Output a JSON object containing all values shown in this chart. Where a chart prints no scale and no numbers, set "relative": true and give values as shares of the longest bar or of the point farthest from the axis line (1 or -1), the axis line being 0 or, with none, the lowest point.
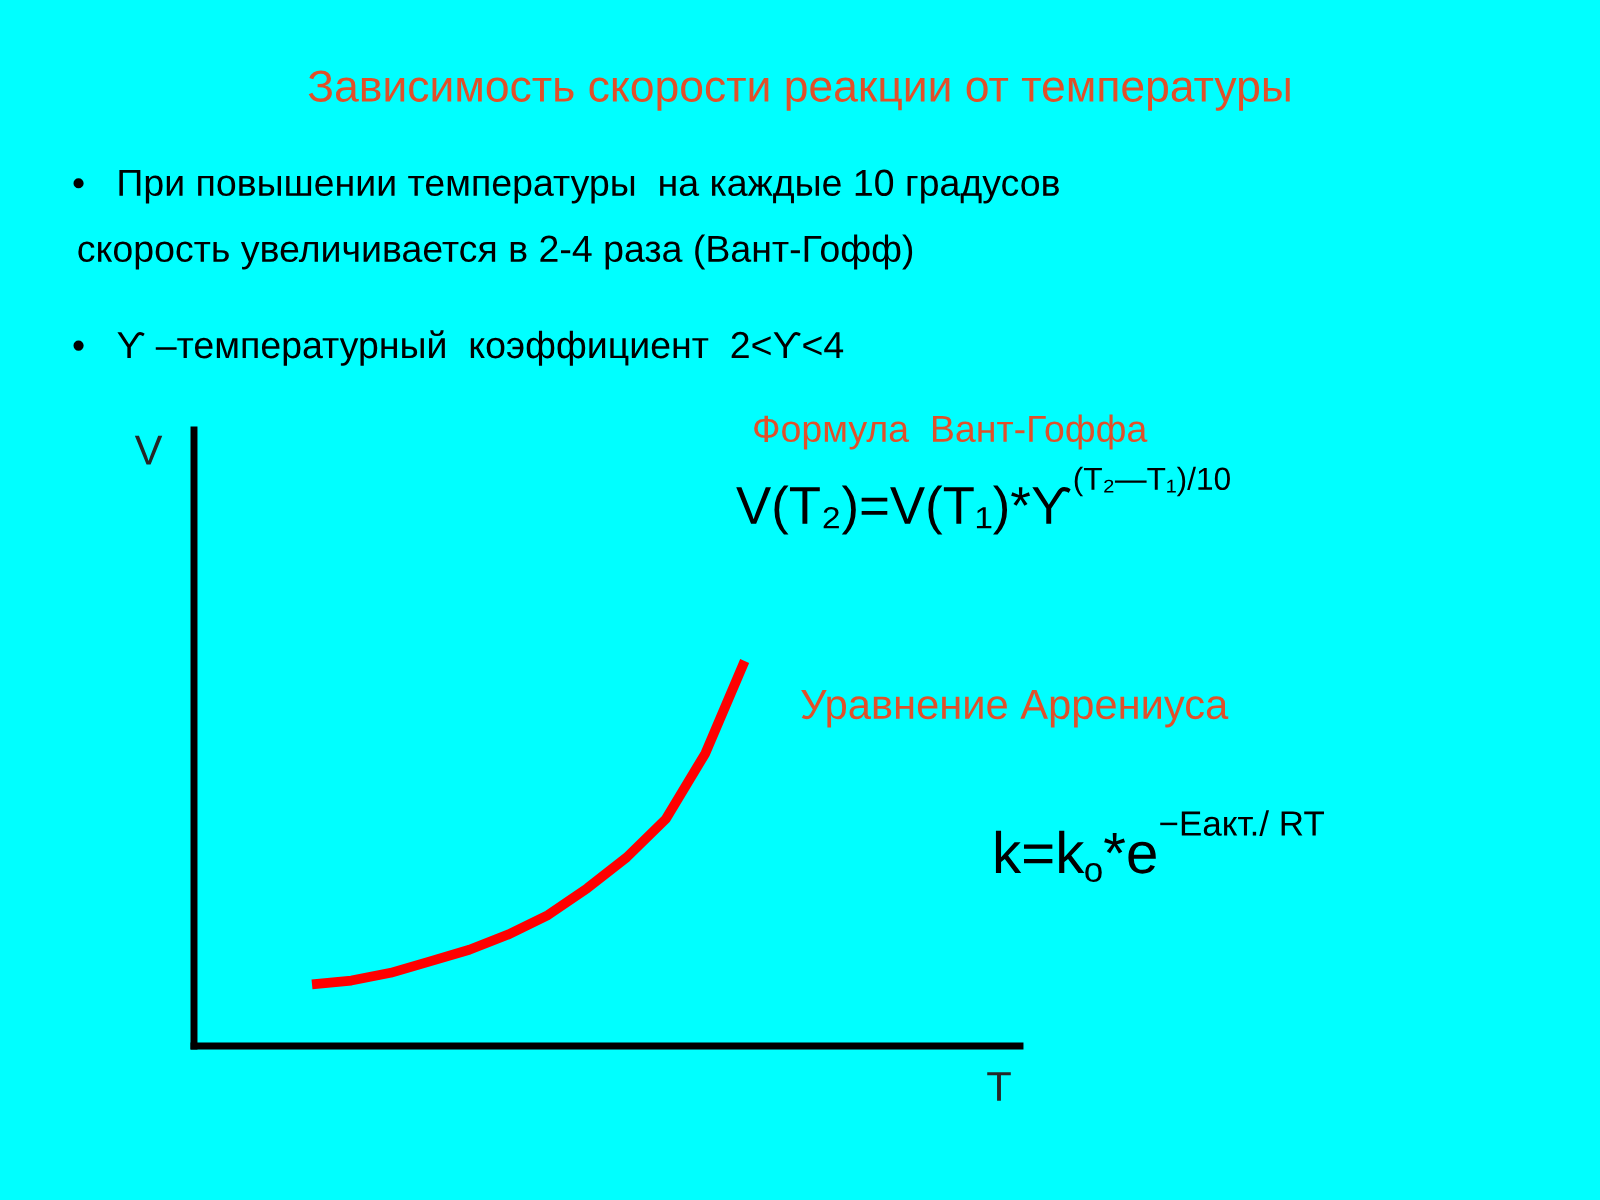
{
  "chart_data": {
    "type": "line",
    "relative": true,
    "title": "Зависимость скорости реакции от температуры",
    "xlabel": "T",
    "ylabel": "V",
    "categories": [
      null,
      null,
      null,
      null,
      null,
      null,
      null,
      null,
      null,
      null,
      null,
      null,
      null,
      null,
      null,
      null,
      null,
      null,
      null,
      null
    ],
    "series": [
      {
        "color": "#ff0000",
        "values": [
          null,
          null,
          0.16,
          0.17,
          0.19,
          0.22,
          0.25,
          0.29,
          0.34,
          0.41,
          0.49,
          0.59,
          0.76,
          1,
          null,
          null,
          null,
          null,
          null,
          null
        ]
      }
    ],
    "annotations": [
      "•   При повышении температуры  на каждые 10 градусов",
      "скорость увеличивается в 2-4 раза (Вант-Гофф)",
      "•   ϒ –температурный  коэффициент  2<ϒ<4",
      "Формула  Вант-Гоффа",
      "V(T₂)=V(T₁)*ϒ$^{(T₂—T₁)/10}$",
      "Уравнение Аррениуса",
      "k=k$_{o}$*e$^{−Eакт./ RT}$"
    ],
    "grid": false,
    "marker": "none",
    "line_style": "solid"
  }
}
